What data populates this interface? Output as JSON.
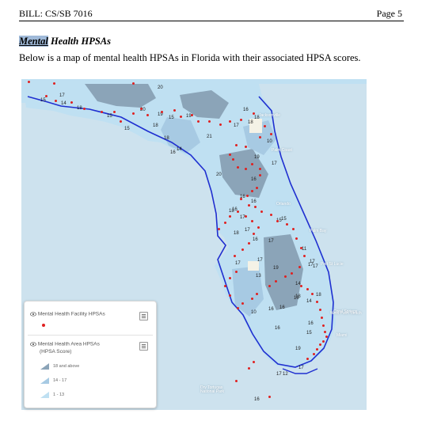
{
  "header": {
    "bill": "BILL: CS/SB 7016",
    "page": "Page 5"
  },
  "section": {
    "title_highlight": "Mental",
    "title_rest": " Health HPSAs"
  },
  "intro": "Below is a map of mental health HPSAs in Florida with their associated HPSA scores.",
  "map": {
    "legend": {
      "facility_label": "Mental Health Facility HPSAs",
      "area_label_line1": "Mental Health Area HPSAs",
      "area_label_line2": "(HPSA Score)",
      "classes": [
        {
          "label": "18 and above",
          "color": "#8ba4b8"
        },
        {
          "label": "14 - 17",
          "color": "#a7cae3"
        },
        {
          "label": "1 - 13",
          "color": "#bfe0f2"
        }
      ]
    },
    "place_labels": [
      "Jacksonville",
      "Palm Coast",
      "Orlando",
      "Palm Bay",
      "Port St Lucie",
      "West Palm Beach",
      "Coral Springs",
      "Miami",
      "Dry Tortugas National Park"
    ],
    "score_labels": [
      "20",
      "15",
      "17",
      "14",
      "18",
      "15",
      "20",
      "19",
      "15",
      "19",
      "18",
      "15",
      "18",
      "16",
      "18",
      "21",
      "17",
      "18",
      "10",
      "16",
      "14",
      "19",
      "17",
      "20",
      "16",
      "16",
      "16",
      "16",
      "15",
      "18",
      "17",
      "15",
      "17",
      "18",
      "16",
      "17",
      "11",
      "17",
      "14",
      "17",
      "19",
      "13",
      "18",
      "17",
      "17",
      "14",
      "17",
      "10",
      "18",
      "16",
      "16",
      "18",
      "16",
      "16",
      "15",
      "17",
      "12",
      "17",
      "16",
      "19"
    ],
    "colors": {
      "water": "#cde2ee",
      "low": "#bfe0f2",
      "mid": "#a7cae3",
      "high": "#8ba4b8",
      "border": "#1f2fd0",
      "dot": "#e02020"
    }
  }
}
